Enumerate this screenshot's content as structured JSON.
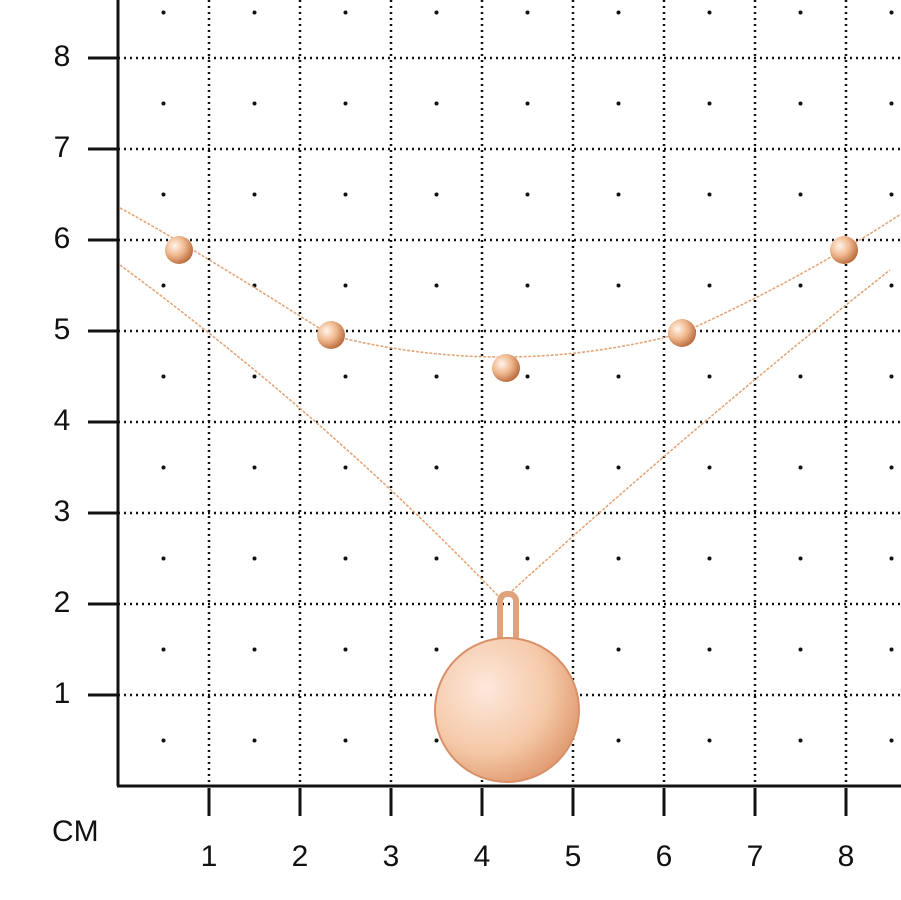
{
  "unit": "CM",
  "y_labels": [
    1,
    2,
    3,
    4,
    5,
    6,
    7,
    8
  ],
  "x_labels": [
    1,
    2,
    3,
    4,
    5,
    6,
    7,
    8
  ]
}
